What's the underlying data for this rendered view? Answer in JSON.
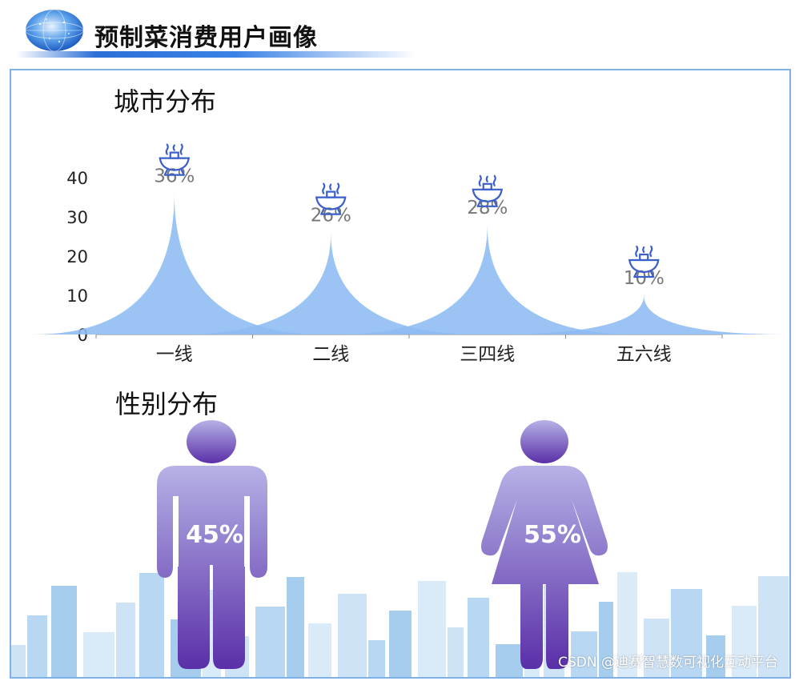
{
  "header": {
    "title": "预制菜消费用户画像"
  },
  "sections": {
    "city_title": "城市分布",
    "gender_title": "性别分布"
  },
  "chart_data": [
    {
      "type": "area",
      "title": "城市分布",
      "categories": [
        "一线",
        "二线",
        "三四线",
        "五六线"
      ],
      "values": [
        36,
        26,
        28,
        10
      ],
      "value_labels": [
        "36%",
        "26%",
        "28%",
        "10%"
      ],
      "y_ticks": [
        "0",
        "10",
        "20",
        "30",
        "40"
      ],
      "ylim": [
        0,
        40
      ],
      "color": "#8dbcf3",
      "icon": "hotpot-icon",
      "icon_color": "#3a5fc8"
    },
    {
      "type": "pictorial",
      "title": "性别分布",
      "categories": [
        "male",
        "female"
      ],
      "values": [
        45,
        55
      ],
      "value_labels": [
        "45%",
        "55%"
      ],
      "gradient": [
        "#b6b2e6",
        "#5a2fa8"
      ]
    }
  ],
  "watermark": "CSDN @迪赛智慧数可视化互动平台"
}
